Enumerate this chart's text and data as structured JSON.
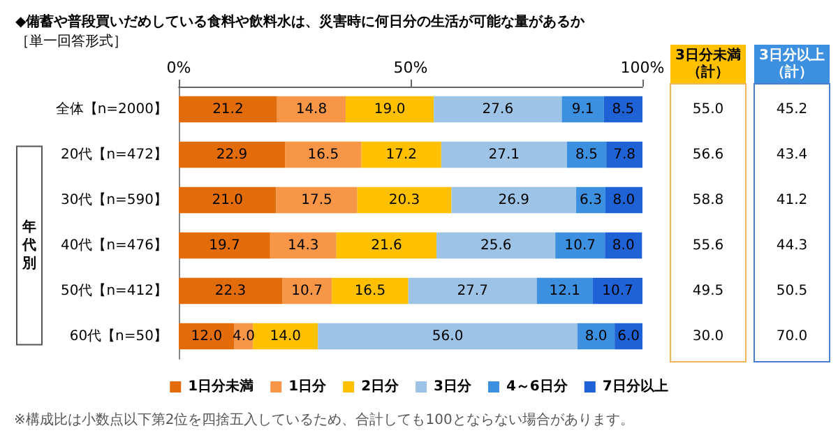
{
  "chart_data": {
    "type": "bar",
    "orientation": "horizontal",
    "stacked": true,
    "title": "◆備蓄や普段買いだめしている食料や飲料水は、災害時に何日分の生活が可能な量があるか",
    "subtitle": "［単一回答形式］",
    "categories": [
      "全体【n=2000】",
      "20代【n=472】",
      "30代【n=590】",
      "40代【n=476】",
      "50代【n=412】",
      "60代【n=50】"
    ],
    "series": [
      {
        "name": "1日分未満",
        "color": "#e36c0a",
        "values": [
          21.2,
          22.9,
          21.0,
          19.7,
          22.3,
          12.0
        ],
        "value_labels": [
          "21.2",
          "22.9",
          "21.0",
          "19.7",
          "22.3",
          "12.0"
        ]
      },
      {
        "name": "1日分",
        "color": "#f79646",
        "values": [
          14.8,
          16.5,
          17.5,
          14.3,
          10.7,
          4.0
        ],
        "value_labels": [
          "14.8",
          "16.5",
          "17.5",
          "14.3",
          "10.7",
          "4.0"
        ]
      },
      {
        "name": "2日分",
        "color": "#ffc000",
        "values": [
          19.0,
          17.2,
          20.3,
          21.6,
          16.5,
          14.0
        ],
        "value_labels": [
          "19.0",
          "17.2",
          "20.3",
          "21.6",
          "16.5",
          "14.0"
        ]
      },
      {
        "name": "3日分",
        "color": "#9dc3e6",
        "values": [
          27.6,
          27.1,
          26.9,
          25.6,
          27.7,
          56.0
        ],
        "value_labels": [
          "27.6",
          "27.1",
          "26.9",
          "25.6",
          "27.7",
          "56.0"
        ]
      },
      {
        "name": "4～6日分",
        "color": "#3d8fe0",
        "values": [
          9.1,
          8.5,
          6.3,
          10.7,
          12.1,
          8.0
        ],
        "value_labels": [
          "9.1",
          "8.5",
          "6.3",
          "10.7",
          "12.1",
          "8.0"
        ]
      },
      {
        "name": "7日分以上",
        "color": "#1f62d6",
        "values": [
          8.5,
          7.8,
          8.0,
          8.0,
          10.7,
          6.0
        ],
        "value_labels": [
          "8.5",
          "7.8",
          "8.0",
          "8.0",
          "10.7",
          "6.0"
        ]
      }
    ],
    "xlim": [
      0,
      100
    ],
    "xticks": [
      {
        "value": 0,
        "label": "0%"
      },
      {
        "value": 50,
        "label": "50%"
      },
      {
        "value": 100,
        "label": "100%"
      }
    ],
    "legend": "bottom",
    "grid": false,
    "annotations": [
      "3日分未満（計）",
      "3日分以上（計）",
      "55.0",
      "45.2",
      "56.6",
      "43.4",
      "58.8",
      "41.2",
      "55.6",
      "44.3",
      "49.5",
      "50.5",
      "30.0",
      "70.0",
      "年代別",
      "※構成比は小数点以下第2位を四捨五入しているため、合計しても100とならない場合があります。"
    ]
  }
}
